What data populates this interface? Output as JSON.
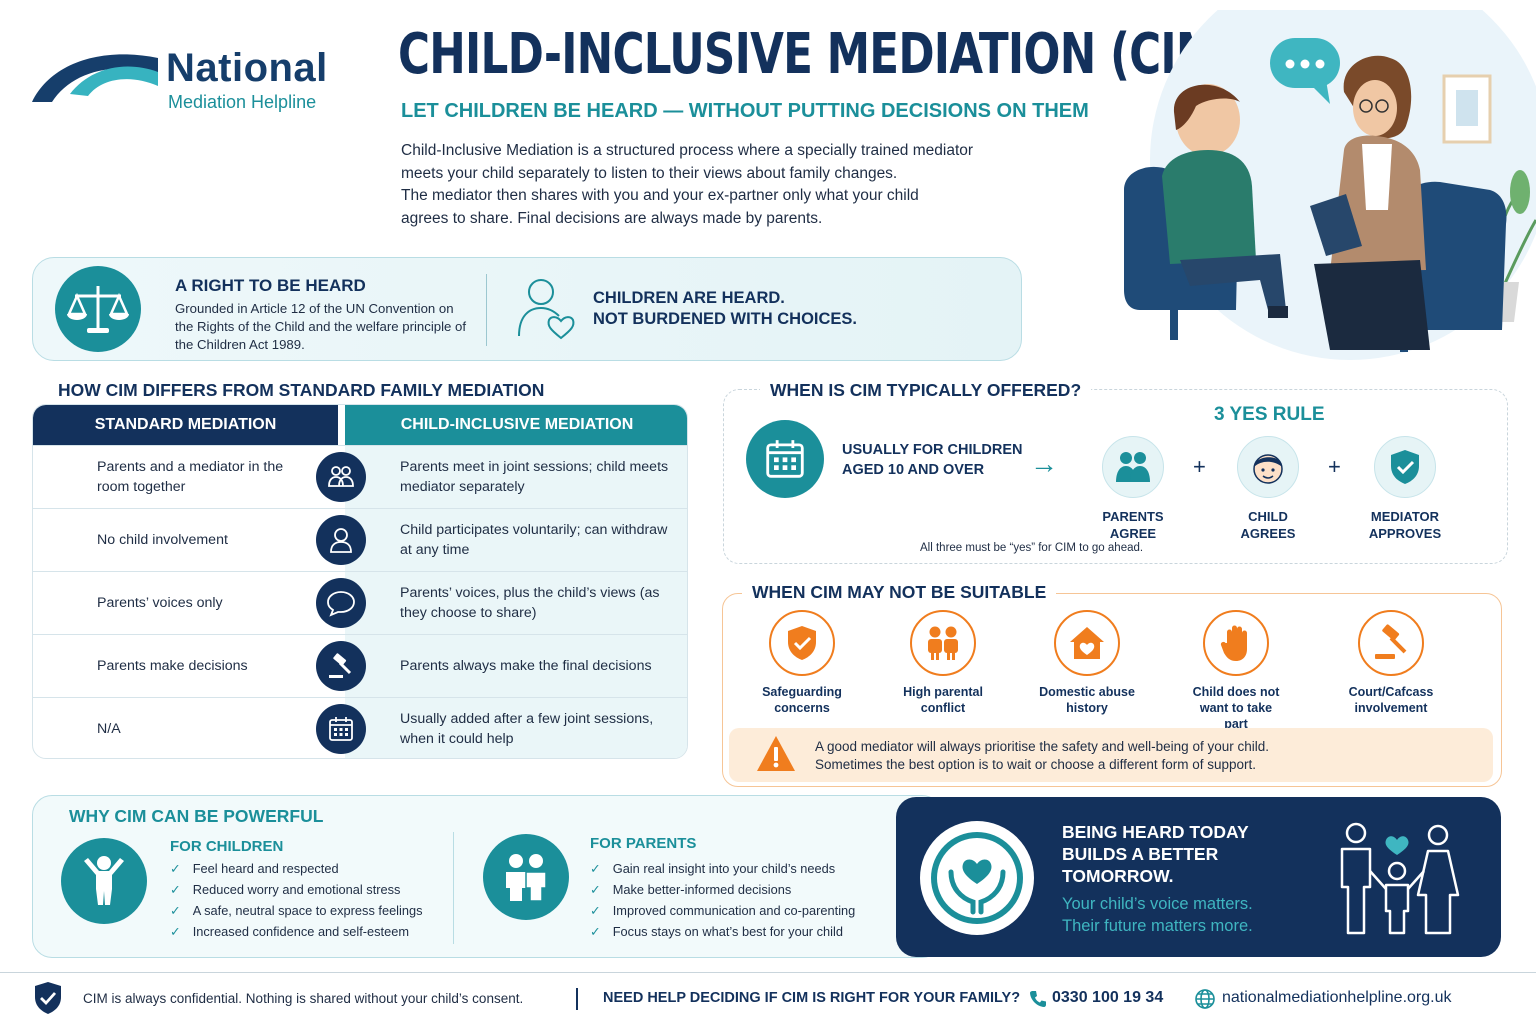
{
  "logo": {
    "name": "National",
    "sub": "Mediation Helpline"
  },
  "header": {
    "title": "CHILD-INCLUSIVE MEDIATION (CIM)",
    "subtitle": "LET CHILDREN BE HEARD — WITHOUT PUTTING DECISIONS ON THEM",
    "intro": [
      "Child-Inclusive Mediation is a structured process where a specially trained mediator",
      "meets your child separately to listen to their views about family changes.",
      "The mediator then shares with you and your ex-partner only what your child",
      "agrees to share. Final decisions are always made by parents."
    ]
  },
  "rights": {
    "title": "A RIGHT TO BE HEARD",
    "text": "Grounded in Article 12 of the UN Convention on the Rights of the Child and the welfare principle of the Children Act 1989.",
    "tagline_1": "CHILDREN ARE HEARD.",
    "tagline_2": "NOT BURDENED WITH CHOICES."
  },
  "comparison": {
    "heading": "HOW CIM DIFFERS FROM STANDARD FAMILY MEDIATION",
    "col_standard": "STANDARD MEDIATION",
    "col_cim": "CHILD-INCLUSIVE MEDIATION",
    "rows": [
      {
        "standard": "Parents and a mediator in the room together",
        "cim": "Parents meet in joint sessions; child meets mediator separately",
        "icon": "people-icon"
      },
      {
        "standard": "No child involvement",
        "cim": "Child participates voluntarily; can withdraw at any time",
        "icon": "child-icon"
      },
      {
        "standard": "Parents’ voices only",
        "cim": "Parents’ voices, plus the child’s views (as they choose to share)",
        "icon": "speech-bubble-icon"
      },
      {
        "standard": "Parents make decisions",
        "cim": "Parents always make the final decisions",
        "icon": "gavel-icon"
      },
      {
        "standard": "N/A",
        "cim": "Usually added after a few joint sessions, when it could help",
        "icon": "calendar-icon"
      }
    ]
  },
  "when_offered": {
    "heading": "WHEN IS CIM TYPICALLY OFFERED?",
    "age_line_1": "USUALLY FOR CHILDREN",
    "age_line_2": "AGED 10 AND OVER",
    "arrow": "→",
    "rule_title": "3 YES RULE",
    "rule_items": [
      {
        "line1": "PARENTS",
        "line2": "AGREE",
        "icon": "parents-icon"
      },
      {
        "line1": "CHILD",
        "line2": "AGREES",
        "icon": "child-face-icon"
      },
      {
        "line1": "MEDIATOR",
        "line2": "APPROVES",
        "icon": "shield-check-icon"
      }
    ],
    "plus": "+",
    "note": "All three must be “yes” for CIM to go ahead."
  },
  "not_suitable": {
    "heading": "WHEN CIM MAY NOT BE SUITABLE",
    "items": [
      {
        "label_1": "Safeguarding",
        "label_2": "concerns",
        "label_3": "",
        "icon": "shield-check-icon"
      },
      {
        "label_1": "High parental",
        "label_2": "conflict",
        "label_3": "",
        "icon": "conflict-icon"
      },
      {
        "label_1": "Domestic abuse",
        "label_2": "history",
        "label_3": "",
        "icon": "house-heart-icon"
      },
      {
        "label_1": "Child does not",
        "label_2": "want to take",
        "label_3": "part",
        "icon": "hand-stop-icon"
      },
      {
        "label_1": "Court/Cafcass",
        "label_2": "involvement",
        "label_3": "",
        "icon": "gavel-icon"
      }
    ],
    "warning_1": "A good mediator will always prioritise the safety and well-being of your child.",
    "warning_2": "Sometimes the best option is to wait or choose a different form of support."
  },
  "why": {
    "heading": "WHY CIM CAN BE POWERFUL",
    "children_title": "FOR CHILDREN",
    "children": [
      "Feel heard and respected",
      "Reduced worry and emotional stress",
      "A safe, neutral space to express feelings",
      "Increased confidence and self-esteem"
    ],
    "parents_title": "FOR PARENTS",
    "parents": [
      "Gain real insight into your child’s needs",
      "Make better-informed decisions",
      "Improved communication and co-parenting",
      "Focus stays on what’s best for your child"
    ]
  },
  "panel": {
    "title_1": "BEING HEARD TODAY",
    "title_2": "BUILDS A BETTER",
    "title_3": "TOMORROW.",
    "sub_1": "Your child’s voice matters.",
    "sub_2": "Their future matters more."
  },
  "footer": {
    "confidential": "CIM is always confidential. Nothing is shared without your child’s consent.",
    "need_help": "NEED HELP DECIDING IF CIM IS RIGHT FOR YOUR FAMILY?",
    "phone": "0330 100 19 34",
    "website": "nationalmediationhelpline.org.uk"
  },
  "colors": {
    "navy": "#13315c",
    "teal": "#1b8f9a",
    "orange": "#f07d1e"
  }
}
